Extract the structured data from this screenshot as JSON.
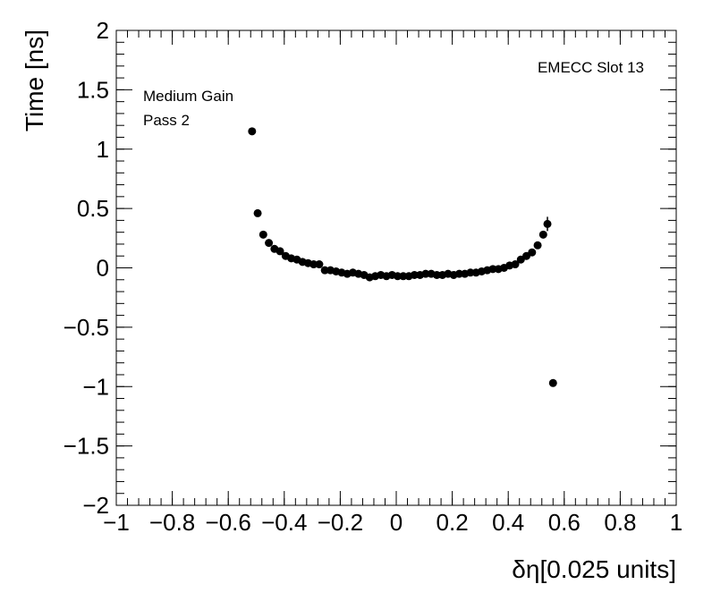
{
  "chart_data": {
    "type": "scatter",
    "xlabel": "δη[0.025 units]",
    "ylabel": "Time [ns]",
    "xlim": [
      -1,
      1
    ],
    "ylim": [
      -2,
      2
    ],
    "x_ticks": [
      -1,
      -0.8,
      -0.6,
      -0.4,
      -0.2,
      0,
      0.2,
      0.4,
      0.6,
      0.8,
      1
    ],
    "x_tick_labels": [
      "−1",
      "−0.8",
      "−0.6",
      "−0.4",
      "−0.2",
      "0",
      "0.2",
      "0.4",
      "0.6",
      "0.8",
      "1"
    ],
    "y_ticks": [
      -2,
      -1.5,
      -1,
      -0.5,
      0,
      0.5,
      1,
      1.5,
      2
    ],
    "y_tick_labels": [
      "−2",
      "−1.5",
      "−1",
      "−0.5",
      "0",
      "0.5",
      "1",
      "1.5",
      "2"
    ],
    "annotations": {
      "top_right": "EMECC Slot 13",
      "top_left_line1": "Medium Gain",
      "top_left_line2": "Pass 2"
    },
    "grid": false,
    "marker_color": "#000000",
    "points": [
      {
        "x": -0.515,
        "y": 1.15
      },
      {
        "x": -0.495,
        "y": 0.46
      },
      {
        "x": -0.475,
        "y": 0.28
      },
      {
        "x": -0.455,
        "y": 0.21
      },
      {
        "x": -0.435,
        "y": 0.16
      },
      {
        "x": -0.415,
        "y": 0.14
      },
      {
        "x": -0.395,
        "y": 0.1
      },
      {
        "x": -0.375,
        "y": 0.08
      },
      {
        "x": -0.355,
        "y": 0.07
      },
      {
        "x": -0.335,
        "y": 0.05
      },
      {
        "x": -0.315,
        "y": 0.04
      },
      {
        "x": -0.295,
        "y": 0.03
      },
      {
        "x": -0.275,
        "y": 0.03
      },
      {
        "x": -0.255,
        "y": -0.02
      },
      {
        "x": -0.235,
        "y": -0.02
      },
      {
        "x": -0.215,
        "y": -0.03
      },
      {
        "x": -0.195,
        "y": -0.04
      },
      {
        "x": -0.175,
        "y": -0.05
      },
      {
        "x": -0.155,
        "y": -0.04
      },
      {
        "x": -0.135,
        "y": -0.05
      },
      {
        "x": -0.115,
        "y": -0.06
      },
      {
        "x": -0.095,
        "y": -0.08
      },
      {
        "x": -0.075,
        "y": -0.07
      },
      {
        "x": -0.055,
        "y": -0.06
      },
      {
        "x": -0.035,
        "y": -0.07
      },
      {
        "x": -0.015,
        "y": -0.06
      },
      {
        "x": 0.005,
        "y": -0.07
      },
      {
        "x": 0.025,
        "y": -0.07
      },
      {
        "x": 0.045,
        "y": -0.07
      },
      {
        "x": 0.065,
        "y": -0.06
      },
      {
        "x": 0.085,
        "y": -0.06
      },
      {
        "x": 0.105,
        "y": -0.05
      },
      {
        "x": 0.125,
        "y": -0.05
      },
      {
        "x": 0.145,
        "y": -0.06
      },
      {
        "x": 0.165,
        "y": -0.06
      },
      {
        "x": 0.185,
        "y": -0.05
      },
      {
        "x": 0.205,
        "y": -0.06
      },
      {
        "x": 0.225,
        "y": -0.05
      },
      {
        "x": 0.245,
        "y": -0.05
      },
      {
        "x": 0.265,
        "y": -0.04
      },
      {
        "x": 0.285,
        "y": -0.04
      },
      {
        "x": 0.305,
        "y": -0.03
      },
      {
        "x": 0.325,
        "y": -0.02
      },
      {
        "x": 0.345,
        "y": -0.01
      },
      {
        "x": 0.365,
        "y": -0.01
      },
      {
        "x": 0.385,
        "y": 0.0
      },
      {
        "x": 0.405,
        "y": 0.02
      },
      {
        "x": 0.425,
        "y": 0.03
      },
      {
        "x": 0.445,
        "y": 0.07
      },
      {
        "x": 0.465,
        "y": 0.1
      },
      {
        "x": 0.485,
        "y": 0.13
      },
      {
        "x": 0.505,
        "y": 0.19
      },
      {
        "x": 0.525,
        "y": 0.28
      },
      {
        "x": 0.54,
        "y": 0.37,
        "err": 0.06
      },
      {
        "x": 0.56,
        "y": -0.97
      }
    ]
  }
}
